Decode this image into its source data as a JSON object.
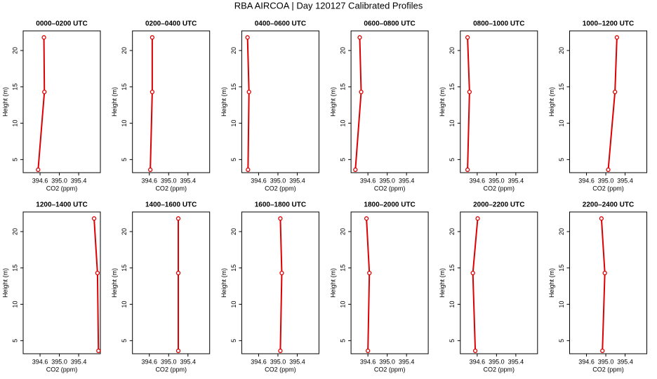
{
  "title": "RBA AIRCOA | Day 120127  Calibrated Profiles",
  "chart_data": [
    {
      "type": "line",
      "title": "0000–0200 UTC",
      "xlabel": "CO2 (ppm)",
      "ylabel": "Height (m)",
      "color": "#dd0000",
      "x": [
        394.68,
        394.69,
        394.56
      ],
      "y": [
        21.8,
        14.3,
        3.6
      ],
      "xlim": [
        394.25,
        395.85
      ],
      "ylim": [
        3.2,
        22.7
      ],
      "xticks": [
        394.6,
        {
          "value": 395,
          "label": "395.0"
        },
        395.4
      ],
      "yticks": [
        5,
        10,
        15,
        20
      ]
    },
    {
      "type": "line",
      "title": "0200–0400 UTC",
      "xlabel": "CO2 (ppm)",
      "ylabel": "Height (m)",
      "color": "#dd0000",
      "x": [
        394.66,
        394.66,
        394.62
      ],
      "y": [
        21.8,
        14.3,
        3.6
      ],
      "xlim": [
        394.25,
        395.85
      ],
      "ylim": [
        3.2,
        22.7
      ],
      "xticks": [
        394.6,
        {
          "value": 395,
          "label": "395.0"
        },
        395.4
      ],
      "yticks": [
        5,
        10,
        15,
        20
      ]
    },
    {
      "type": "line",
      "title": "0400–0600 UTC",
      "xlabel": "CO2 (ppm)",
      "ylabel": "Height (m)",
      "color": "#dd0000",
      "x": [
        394.37,
        394.4,
        394.38
      ],
      "y": [
        21.8,
        14.3,
        3.6
      ],
      "xlim": [
        394.25,
        395.85
      ],
      "ylim": [
        3.2,
        22.7
      ],
      "xticks": [
        394.6,
        {
          "value": 395,
          "label": "395.0"
        },
        395.4
      ],
      "yticks": [
        5,
        10,
        15,
        20
      ]
    },
    {
      "type": "line",
      "title": "0600–0800 UTC",
      "xlabel": "CO2 (ppm)",
      "ylabel": "Height (m)",
      "color": "#dd0000",
      "x": [
        394.43,
        394.46,
        394.34
      ],
      "y": [
        21.8,
        14.3,
        3.6
      ],
      "xlim": [
        394.25,
        395.85
      ],
      "ylim": [
        3.2,
        22.7
      ],
      "xticks": [
        394.6,
        {
          "value": 395,
          "label": "395.0"
        },
        395.4
      ],
      "yticks": [
        5,
        10,
        15,
        20
      ]
    },
    {
      "type": "line",
      "title": "0800–1000 UTC",
      "xlabel": "CO2 (ppm)",
      "ylabel": "Height (m)",
      "color": "#dd0000",
      "x": [
        394.4,
        394.44,
        394.4
      ],
      "y": [
        21.8,
        14.3,
        3.6
      ],
      "xlim": [
        394.25,
        395.85
      ],
      "ylim": [
        3.2,
        22.7
      ],
      "xticks": [
        394.6,
        {
          "value": 395,
          "label": "395.0"
        },
        395.4
      ],
      "yticks": [
        5,
        10,
        15,
        20
      ]
    },
    {
      "type": "line",
      "title": "1000–1200 UTC",
      "xlabel": "CO2 (ppm)",
      "ylabel": "Height (m)",
      "color": "#dd0000",
      "x": [
        395.23,
        395.19,
        395.05
      ],
      "y": [
        21.8,
        14.3,
        3.6
      ],
      "xlim": [
        394.25,
        395.85
      ],
      "ylim": [
        3.2,
        22.7
      ],
      "xticks": [
        394.6,
        {
          "value": 395,
          "label": "395.0"
        },
        395.4
      ],
      "yticks": [
        5,
        10,
        15,
        20
      ]
    },
    {
      "type": "line",
      "title": "1200–1400 UTC",
      "xlabel": "CO2 (ppm)",
      "ylabel": "Height (m)",
      "color": "#dd0000",
      "x": [
        395.72,
        395.79,
        395.81
      ],
      "y": [
        21.8,
        14.3,
        3.6
      ],
      "xlim": [
        394.25,
        395.85
      ],
      "ylim": [
        3.2,
        22.7
      ],
      "xticks": [
        394.6,
        {
          "value": 395,
          "label": "395.0"
        },
        395.4
      ],
      "yticks": [
        5,
        10,
        15,
        20
      ]
    },
    {
      "type": "line",
      "title": "1400–1600 UTC",
      "xlabel": "CO2 (ppm)",
      "ylabel": "Height (m)",
      "color": "#dd0000",
      "x": [
        395.2,
        395.2,
        395.2
      ],
      "y": [
        21.8,
        14.3,
        3.6
      ],
      "xlim": [
        394.25,
        395.85
      ],
      "ylim": [
        3.2,
        22.7
      ],
      "xticks": [
        394.6,
        {
          "value": 395,
          "label": "395.0"
        },
        395.4
      ],
      "yticks": [
        5,
        10,
        15,
        20
      ]
    },
    {
      "type": "line",
      "title": "1600–1800 UTC",
      "xlabel": "CO2 (ppm)",
      "ylabel": "Height (m)",
      "color": "#dd0000",
      "x": [
        395.05,
        395.08,
        395.05
      ],
      "y": [
        21.8,
        14.3,
        3.6
      ],
      "xlim": [
        394.25,
        395.85
      ],
      "ylim": [
        3.2,
        22.7
      ],
      "xticks": [
        394.6,
        {
          "value": 395,
          "label": "395.0"
        },
        395.4
      ],
      "yticks": [
        5,
        10,
        15,
        20
      ]
    },
    {
      "type": "line",
      "title": "1800–2000 UTC",
      "xlabel": "CO2 (ppm)",
      "ylabel": "Height (m)",
      "color": "#dd0000",
      "x": [
        394.57,
        394.63,
        394.6
      ],
      "y": [
        21.8,
        14.3,
        3.6
      ],
      "xlim": [
        394.25,
        395.85
      ],
      "ylim": [
        3.2,
        22.7
      ],
      "xticks": [
        394.6,
        {
          "value": 395,
          "label": "395.0"
        },
        395.4
      ],
      "yticks": [
        5,
        10,
        15,
        20
      ]
    },
    {
      "type": "line",
      "title": "2000–2200 UTC",
      "xlabel": "CO2 (ppm)",
      "ylabel": "Height (m)",
      "color": "#dd0000",
      "x": [
        394.61,
        394.51,
        394.56
      ],
      "y": [
        21.8,
        14.3,
        3.6
      ],
      "xlim": [
        394.25,
        395.85
      ],
      "ylim": [
        3.2,
        22.7
      ],
      "xticks": [
        394.6,
        {
          "value": 395,
          "label": "395.0"
        },
        395.4
      ],
      "yticks": [
        5,
        10,
        15,
        20
      ]
    },
    {
      "type": "line",
      "title": "2200–2400 UTC",
      "xlabel": "CO2 (ppm)",
      "ylabel": "Height (m)",
      "color": "#dd0000",
      "x": [
        394.91,
        394.98,
        394.93
      ],
      "y": [
        21.8,
        14.3,
        3.6
      ],
      "xlim": [
        394.25,
        395.85
      ],
      "ylim": [
        3.2,
        22.7
      ],
      "xticks": [
        394.6,
        {
          "value": 395,
          "label": "395.0"
        },
        395.4
      ],
      "yticks": [
        5,
        10,
        15,
        20
      ]
    }
  ]
}
